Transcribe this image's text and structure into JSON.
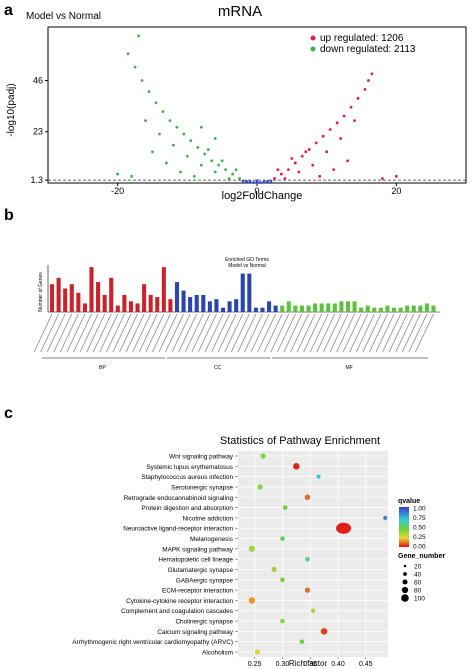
{
  "panels": {
    "a": "a",
    "b": "b",
    "c": "c"
  },
  "chart_data": [
    {
      "type": "scatter",
      "panel": "a",
      "title": "mRNA",
      "subtitle": "Model vs Normal",
      "xlabel": "log2FoldChange",
      "ylabel": "-log10(padj)",
      "xlim": [
        -30,
        30
      ],
      "ylim": [
        0,
        70
      ],
      "xticks": [
        -20,
        0,
        20
      ],
      "yticks": [
        1.3,
        23,
        46
      ],
      "ytick_labels": [
        "1.3",
        "23",
        "46"
      ],
      "threshold_line": 1.3,
      "series": [
        {
          "name": "up regulated: 1206",
          "color": "#dc1e50",
          "points": [
            [
              2.5,
              2
            ],
            [
              3.5,
              4
            ],
            [
              4.5,
              6
            ],
            [
              5.5,
              9
            ],
            [
              6.5,
              12
            ],
            [
              7.5,
              15
            ],
            [
              8.5,
              18
            ],
            [
              9.5,
              21
            ],
            [
              10.5,
              24
            ],
            [
              11.5,
              27
            ],
            [
              12.5,
              30
            ],
            [
              13.5,
              34
            ],
            [
              14.5,
              38
            ],
            [
              15.5,
              42
            ],
            [
              16,
              46
            ],
            [
              16.5,
              49
            ],
            [
              4,
              2
            ],
            [
              6,
              5
            ],
            [
              8,
              8
            ],
            [
              10,
              14
            ],
            [
              12,
              20
            ],
            [
              14,
              28
            ],
            [
              9,
              3
            ],
            [
              11,
              6
            ],
            [
              13,
              10
            ],
            [
              18,
              2
            ],
            [
              3,
              6
            ],
            [
              5,
              11
            ],
            [
              7,
              14
            ],
            [
              20,
              3
            ]
          ]
        },
        {
          "name": "down regulated: 2113",
          "color": "#3cb24b",
          "points": [
            [
              -2.5,
              2
            ],
            [
              -3.5,
              4
            ],
            [
              -4.5,
              6
            ],
            [
              -5.5,
              8
            ],
            [
              -6.5,
              10
            ],
            [
              -7.5,
              13
            ],
            [
              -8.5,
              16
            ],
            [
              -9.5,
              19
            ],
            [
              -10.5,
              22
            ],
            [
              -11.5,
              25
            ],
            [
              -12.5,
              28
            ],
            [
              -13.5,
              32
            ],
            [
              -14.5,
              36
            ],
            [
              -15.5,
              41
            ],
            [
              -16.5,
              46
            ],
            [
              -17.5,
              52
            ],
            [
              -18.5,
              58
            ],
            [
              -17,
              66
            ],
            [
              -4,
              2
            ],
            [
              -6,
              5
            ],
            [
              -8,
              8
            ],
            [
              -10,
              12
            ],
            [
              -12,
              17
            ],
            [
              -14,
              22
            ],
            [
              -16,
              28
            ],
            [
              -9,
              3
            ],
            [
              -11,
              5
            ],
            [
              -13,
              9
            ],
            [
              -15,
              14
            ],
            [
              -18,
              3
            ],
            [
              -20,
              4
            ],
            [
              -3,
              6
            ],
            [
              -5,
              10
            ],
            [
              -7,
              15
            ],
            [
              -6,
              20
            ],
            [
              -8,
              25
            ]
          ]
        },
        {
          "name": "",
          "color": "#2a4bd7",
          "points": [
            [
              0,
              0.3
            ],
            [
              -1,
              0.5
            ],
            [
              1,
              0.5
            ],
            [
              -2,
              0.9
            ],
            [
              2,
              0.9
            ],
            [
              -1.5,
              0.7
            ],
            [
              1.5,
              0.7
            ],
            [
              0.5,
              0.2
            ],
            [
              -0.5,
              0.2
            ],
            [
              0,
              1.0
            ]
          ]
        }
      ]
    },
    {
      "type": "bar",
      "panel": "b",
      "title": "Enriched GO Terms",
      "subtitle": "Model vs Normal",
      "ylabel": "Number of Genes",
      "groups": [
        "BP",
        "CC",
        "MF"
      ],
      "series": [
        {
          "name": "BP",
          "color": "#c8232a",
          "values": [
            13,
            16,
            11,
            13,
            9,
            4,
            21,
            14,
            8,
            16,
            3,
            8,
            5,
            4,
            13,
            8,
            7,
            21,
            6
          ]
        },
        {
          "name": "CC",
          "color": "#2a45b0",
          "values": [
            14,
            10,
            7,
            8,
            8,
            5,
            6,
            2,
            5,
            6,
            18,
            18,
            2,
            2,
            5,
            3
          ]
        },
        {
          "name": "MF",
          "color": "#5cc23c",
          "values": [
            3,
            5,
            3,
            3,
            3,
            4,
            4,
            4,
            4,
            5,
            5,
            5,
            2,
            3,
            2,
            2,
            3,
            2,
            2,
            3,
            3,
            3,
            4,
            3
          ]
        }
      ]
    },
    {
      "type": "scatter",
      "panel": "c",
      "title": "Statistics of Pathway Enrichment",
      "xlabel": "Rich factor",
      "xlim": [
        0.22,
        0.49
      ],
      "xticks": [
        0.25,
        0.3,
        0.35,
        0.4,
        0.45
      ],
      "xtick_labels": [
        "0.25",
        "0.30",
        "0.35",
        "0.40",
        "0.45"
      ],
      "categories": [
        "Wnt signaling pathway",
        "Systemic lupus erythematosus",
        "Staphylococcus aureus infection",
        "Serotonergic synapse",
        "Retrograde endocannabinoid signaling",
        "Protein digestion and absorption",
        "Nicotine addiction",
        "Neuroactive ligand-receptor interaction",
        "Melanogenesis",
        "MAPK signaling pathway",
        "Hematopoietic cell lineage",
        "Glutamatergic synapse",
        "GABAergic synapse",
        "ECM-receptor interaction",
        "Cytokine-cytokine receptor interaction",
        "Complement and coagulation cascades",
        "Cholinergic synapse",
        "Calcium signaling pathway",
        "Arrhythmogenic right ventricular cardiomyopathy (ARVC)",
        "Alcoholism"
      ],
      "points": [
        {
          "x": 0.265,
          "size": 30,
          "q": 0.4
        },
        {
          "x": 0.325,
          "size": 55,
          "q": 0.02
        },
        {
          "x": 0.365,
          "size": 15,
          "q": 0.7
        },
        {
          "x": 0.26,
          "size": 28,
          "q": 0.4
        },
        {
          "x": 0.345,
          "size": 35,
          "q": 0.1
        },
        {
          "x": 0.305,
          "size": 22,
          "q": 0.45
        },
        {
          "x": 0.485,
          "size": 15,
          "q": 0.85
        },
        {
          "x": 0.41,
          "size": 100,
          "q": 0.01
        },
        {
          "x": 0.3,
          "size": 20,
          "q": 0.5
        },
        {
          "x": 0.245,
          "size": 45,
          "q": 0.35
        },
        {
          "x": 0.345,
          "size": 20,
          "q": 0.55
        },
        {
          "x": 0.285,
          "size": 28,
          "q": 0.35
        },
        {
          "x": 0.3,
          "size": 20,
          "q": 0.45
        },
        {
          "x": 0.345,
          "size": 30,
          "q": 0.1
        },
        {
          "x": 0.245,
          "size": 55,
          "q": 0.15
        },
        {
          "x": 0.355,
          "size": 22,
          "q": 0.3
        },
        {
          "x": 0.3,
          "size": 20,
          "q": 0.4
        },
        {
          "x": 0.375,
          "size": 55,
          "q": 0.05
        },
        {
          "x": 0.335,
          "size": 20,
          "q": 0.45
        },
        {
          "x": 0.255,
          "size": 30,
          "q": 0.25
        }
      ],
      "legend": {
        "qvalue_title": "qvalue",
        "qvalue_ticks": [
          "1.00",
          "0.75",
          "0.50",
          "0.25",
          "0.00"
        ],
        "size_title": "Gene_number",
        "size_ticks": [
          "20",
          "40",
          "60",
          "80",
          "100"
        ]
      }
    }
  ]
}
